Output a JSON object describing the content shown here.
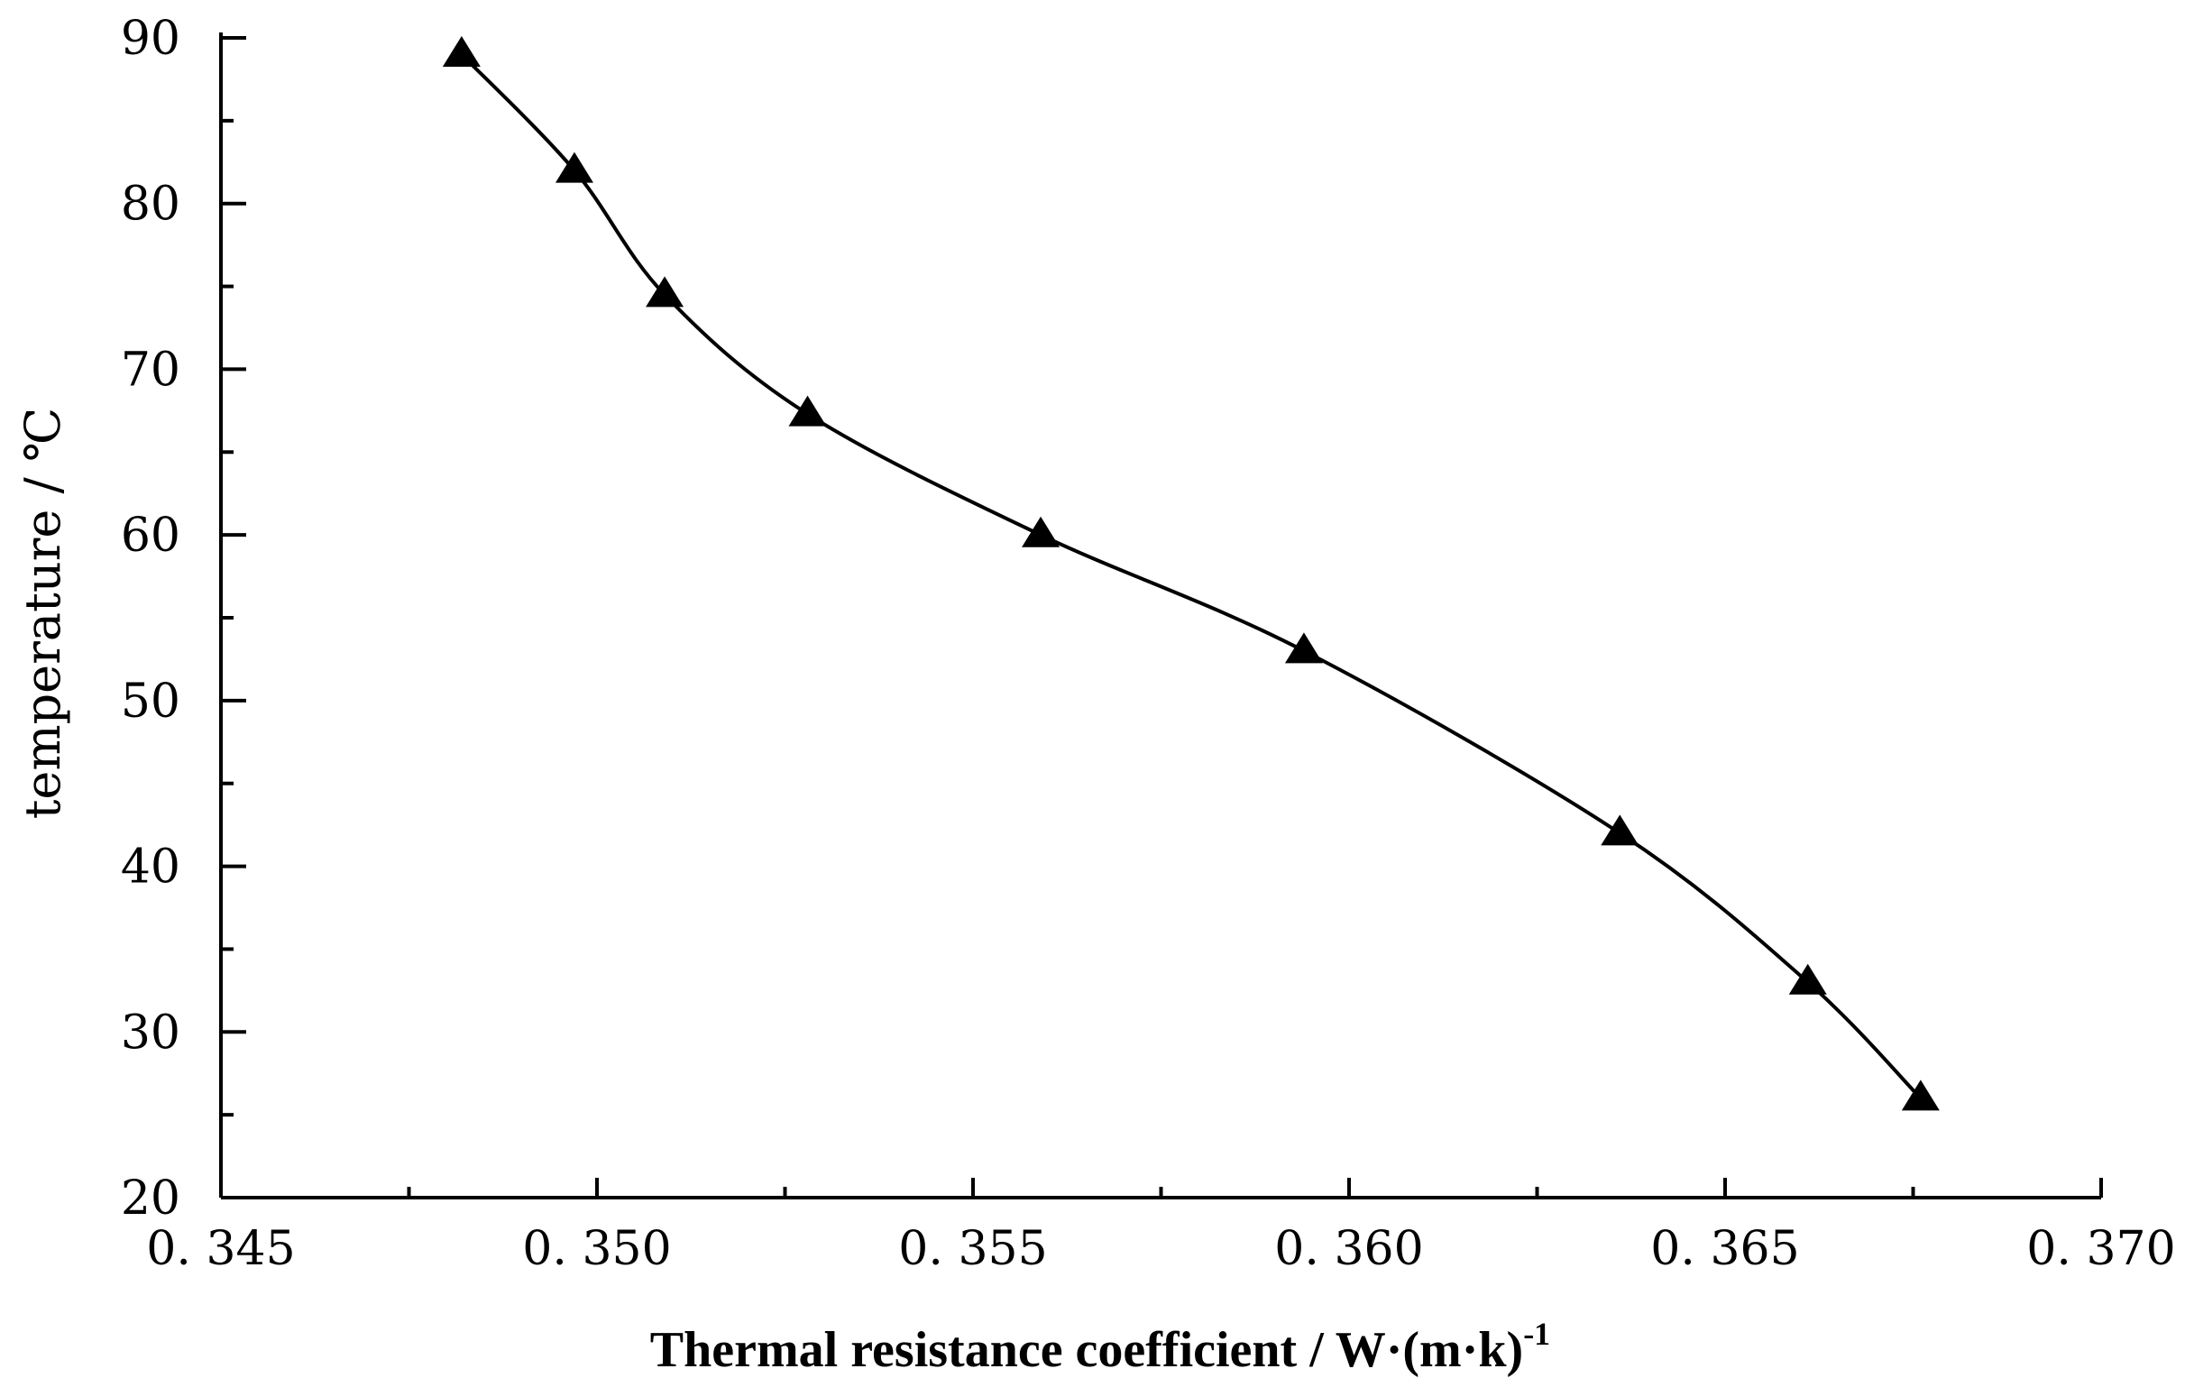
{
  "chart_data": {
    "type": "line",
    "title": "",
    "xlabel": "Thermal resistance coefficient / W·(m·k)",
    "xlabel_superscript": "-1",
    "ylabel": "temperature / ℃",
    "xlim": [
      0.345,
      0.37
    ],
    "ylim": [
      20,
      90
    ],
    "x_ticks": [
      0.345,
      0.35,
      0.355,
      0.36,
      0.365,
      0.37
    ],
    "x_tick_labels": [
      "0. 345",
      "0. 350",
      "0. 355",
      "0. 360",
      "0. 365",
      "0. 370"
    ],
    "y_ticks": [
      20,
      30,
      40,
      50,
      60,
      70,
      80,
      90
    ],
    "y_tick_labels": [
      "20",
      "30",
      "40",
      "50",
      "60",
      "70",
      "80",
      "90"
    ],
    "grid": false,
    "series": [
      {
        "name": "temperature",
        "marker": "triangle",
        "color": "#000000",
        "x": [
          0.3482,
          0.3497,
          0.3509,
          0.3528,
          0.3559,
          0.3594,
          0.3636,
          0.3661,
          0.3676
        ],
        "y": [
          89,
          82,
          74.5,
          67.3,
          60,
          53,
          42,
          33,
          26
        ]
      }
    ]
  }
}
